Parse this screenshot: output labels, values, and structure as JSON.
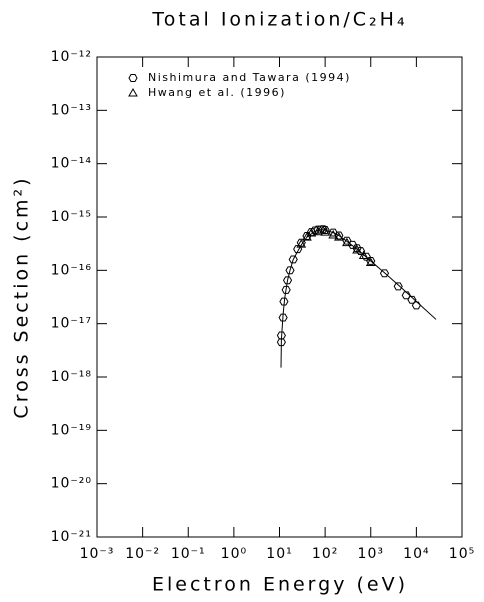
{
  "chart_data": {
    "type": "line",
    "title": "Total Ionization/C₂H₄",
    "x_label": "Electron Energy (eV)",
    "y_label": "Cross Section (cm²)",
    "log_x": true,
    "log_y": true,
    "xlim": [
      0.001,
      100000
    ],
    "ylim": [
      1e-21,
      1e-12
    ],
    "xticks": [
      {
        "value": 0.001,
        "label": "10⁻³"
      },
      {
        "value": 0.01,
        "label": "10⁻²"
      },
      {
        "value": 0.1,
        "label": "10⁻¹"
      },
      {
        "value": 1,
        "label": "10⁰"
      },
      {
        "value": 10,
        "label": "10¹"
      },
      {
        "value": 100,
        "label": "10²"
      },
      {
        "value": 1000,
        "label": "10³"
      },
      {
        "value": 10000,
        "label": "10⁴"
      },
      {
        "value": 100000,
        "label": "10⁵"
      }
    ],
    "yticks": [
      {
        "value": 1e-21,
        "label": "10⁻²¹"
      },
      {
        "value": 1e-20,
        "label": "10⁻²⁰"
      },
      {
        "value": 1e-19,
        "label": "10⁻¹⁹"
      },
      {
        "value": 1e-18,
        "label": "10⁻¹⁸"
      },
      {
        "value": 1e-17,
        "label": "10⁻¹⁷"
      },
      {
        "value": 1e-16,
        "label": "10⁻¹⁶"
      },
      {
        "value": 1e-15,
        "label": "10⁻¹⁵"
      },
      {
        "value": 1e-14,
        "label": "10⁻¹⁴"
      },
      {
        "value": 1e-13,
        "label": "10⁻¹³"
      },
      {
        "value": 1e-12,
        "label": "10⁻¹²"
      }
    ],
    "series": [
      {
        "name": "Nishimura and Tawara (1994)",
        "type": "scatter",
        "marker": "hexagon",
        "color": "#000000",
        "x": [
          11,
          11,
          12,
          12.5,
          14,
          15,
          17,
          20,
          25,
          30,
          40,
          50,
          60,
          70,
          80,
          90,
          100,
          150,
          200,
          300,
          400,
          500,
          600,
          800,
          1000,
          2000,
          4000,
          6000,
          8000,
          10000
        ],
        "values": [
          4.5e-18,
          6e-18,
          1.3e-17,
          2.6e-17,
          4.3e-17,
          6.5e-17,
          1e-16,
          1.6e-16,
          2.5e-16,
          3.3e-16,
          4.4e-16,
          5.2e-16,
          5.6e-16,
          5.8e-16,
          5.8e-16,
          5.9e-16,
          5.7e-16,
          5.1e-16,
          4.5e-16,
          3.6e-16,
          3e-16,
          2.6e-16,
          2.3e-16,
          1.8e-16,
          1.5e-16,
          8.8e-17,
          5e-17,
          3.4e-17,
          2.8e-17,
          2.2e-17
        ]
      },
      {
        "name": "Hwang et al. (1996)",
        "type": "scatter",
        "marker": "triangle",
        "color": "#000000",
        "x": [
          30,
          40,
          50,
          70,
          100,
          150,
          200,
          300,
          500,
          700,
          1000
        ],
        "values": [
          3.1e-16,
          4.2e-16,
          5e-16,
          5.3e-16,
          5.2e-16,
          4.6e-16,
          4.2e-16,
          3.3e-16,
          2.4e-16,
          1.9e-16,
          1.4e-16
        ]
      },
      {
        "type": "line",
        "marker": "none",
        "color": "#000000",
        "x": [
          10.8,
          11,
          12,
          13,
          15,
          17,
          20,
          30,
          40,
          60,
          80,
          100,
          150,
          200,
          300,
          500,
          1000,
          2000,
          5000,
          10000,
          27000
        ],
        "values": [
          1.5e-18,
          5e-18,
          1.5e-17,
          3e-17,
          6.5e-17,
          1e-16,
          1.6e-16,
          3e-16,
          4.2e-16,
          5.4e-16,
          5.8e-16,
          5.7e-16,
          5.1e-16,
          4.5e-16,
          3.5e-16,
          2.5e-16,
          1.5e-16,
          9e-17,
          4.5e-17,
          2.6e-17,
          1.2e-17
        ]
      }
    ]
  }
}
